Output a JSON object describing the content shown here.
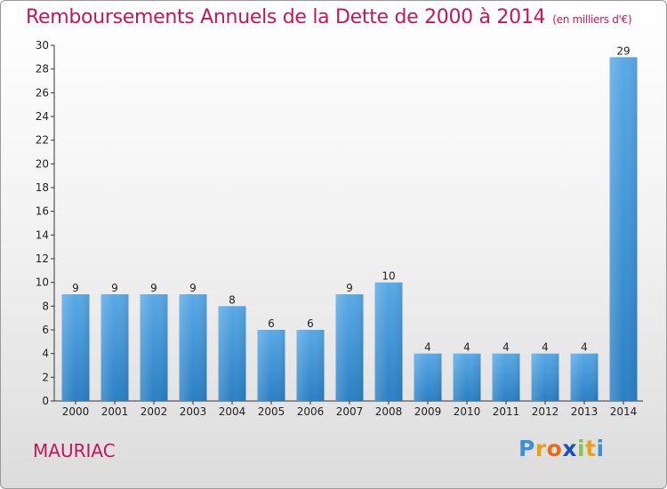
{
  "chart_data": {
    "type": "bar",
    "title": "Remboursements Annuels de la Dette de 2000 à 2014",
    "subtitle": "(en milliers d'€)",
    "categories": [
      "2000",
      "2001",
      "2002",
      "2003",
      "2004",
      "2005",
      "2006",
      "2007",
      "2008",
      "2009",
      "2010",
      "2011",
      "2012",
      "2013",
      "2014"
    ],
    "values": [
      9,
      9,
      9,
      9,
      8,
      6,
      6,
      9,
      10,
      4,
      4,
      4,
      4,
      4,
      29
    ],
    "ylim": [
      0,
      30
    ],
    "yticks": [
      0,
      2,
      4,
      6,
      8,
      10,
      12,
      14,
      16,
      18,
      20,
      22,
      24,
      26,
      28,
      30
    ],
    "grid": false,
    "bar_color_top": "#5aa9e6",
    "bar_color_bottom": "#2a7fc4"
  },
  "commune": "MAURIAC",
  "logo": {
    "letters": [
      "P",
      "r",
      "o",
      "x",
      "i",
      "t",
      "i"
    ],
    "colors": [
      "#3a8fd6",
      "#e8a21a",
      "#e86a1a",
      "#1f4fb8",
      "#8bc34a",
      "#e8a21a",
      "#3a8fd6"
    ]
  },
  "colors": {
    "accent": "#c2185b"
  }
}
